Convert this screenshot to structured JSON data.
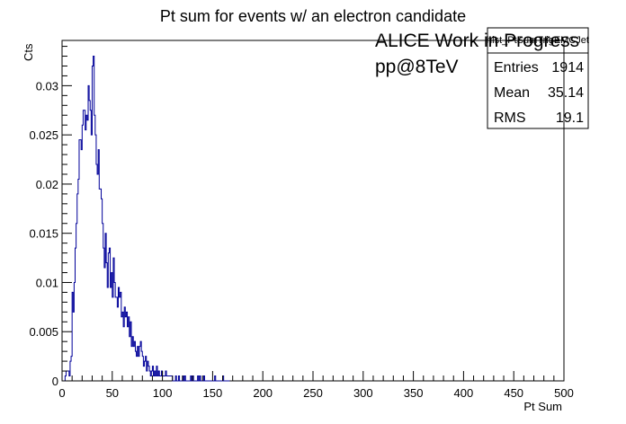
{
  "chart_data": {
    "type": "histogram",
    "title": "Pt sum for events w/ an electron candidate",
    "xlabel": "Pt Sum",
    "ylabel": "Cts",
    "xlim": [
      0,
      500
    ],
    "ylim": [
      0,
      0.0346
    ],
    "x_ticks": [
      0,
      50,
      100,
      150,
      200,
      250,
      300,
      350,
      400,
      450,
      500
    ],
    "y_ticks": [
      0,
      0.005,
      0.01,
      0.015,
      0.02,
      0.025,
      0.03
    ],
    "x_tick_labels": [
      "0",
      "50",
      "100",
      "150",
      "200",
      "250",
      "300",
      "350",
      "400",
      "450",
      "500"
    ],
    "y_tick_labels": [
      "0",
      "0.005",
      "0.01",
      "0.015",
      "0.02",
      "0.025",
      "0.03"
    ],
    "bin_width": 1,
    "bins_start": 0,
    "values": [
      0,
      0,
      0,
      0.0005,
      0.001,
      0.001,
      0.001,
      0.0005,
      0.002,
      0.0025,
      0.009,
      0.007,
      0.01,
      0.0135,
      0.016,
      0.019,
      0.0205,
      0.0245,
      0.0245,
      0.0235,
      0.026,
      0.0275,
      0.0275,
      0.0255,
      0.027,
      0.0265,
      0.03,
      0.0285,
      0.0275,
      0.025,
      0.032,
      0.033,
      0.027,
      0.025,
      0.022,
      0.021,
      0.0235,
      0.0195,
      0.0195,
      0.0185,
      0.016,
      0.0135,
      0.0115,
      0.015,
      0.012,
      0.0095,
      0.013,
      0.0135,
      0.0095,
      0.011,
      0.0085,
      0.0125,
      0.01,
      0.0085,
      0.0085,
      0.0075,
      0.0095,
      0.0085,
      0.009,
      0.0065,
      0.007,
      0.0055,
      0.0075,
      0.0065,
      0.007,
      0.0055,
      0.0065,
      0.0045,
      0.006,
      0.0035,
      0.0045,
      0.0035,
      0.004,
      0.003,
      0.0025,
      0.0035,
      0.0025,
      0.0035,
      0.004,
      0.003,
      0.0025,
      0.0015,
      0.002,
      0.0025,
      0.001,
      0.002,
      0.0015,
      0.001,
      0.0005,
      0.001,
      0.0015,
      0.0005,
      0.001,
      0.0005,
      0.0015,
      0.0005,
      0.001,
      0.0005,
      0.0005,
      0.001,
      0.0005,
      0.0005,
      0.0005,
      0.001,
      0.0005,
      0.0005,
      0.0005,
      0.0005,
      0.0005,
      0.0005,
      0,
      0,
      0,
      0.0005,
      0,
      0,
      0.0005,
      0,
      0,
      0,
      0.0005,
      0,
      0.0005,
      0,
      0,
      0,
      0,
      0,
      0.0005,
      0,
      0.0005,
      0,
      0,
      0,
      0,
      0.0005,
      0,
      0.0005,
      0,
      0,
      0,
      0.0005,
      0,
      0,
      0,
      0,
      0,
      0,
      0,
      0,
      0,
      0,
      0.0005,
      0,
      0,
      0,
      0,
      0,
      0,
      0,
      0.0005,
      0,
      0,
      0,
      0,
      0,
      0
    ],
    "line_color": "#000099",
    "grid": false,
    "legend": "none"
  },
  "stats_box": {
    "name": "hist_PtSumTrigEMCJet",
    "rows": [
      {
        "label": "Entries",
        "value": "1914"
      },
      {
        "label": "Mean",
        "value": "35.14"
      },
      {
        "label": "RMS",
        "value": "19.1"
      }
    ]
  },
  "annotations": [
    "ALICE Work in Progress",
    "pp@8TeV"
  ]
}
